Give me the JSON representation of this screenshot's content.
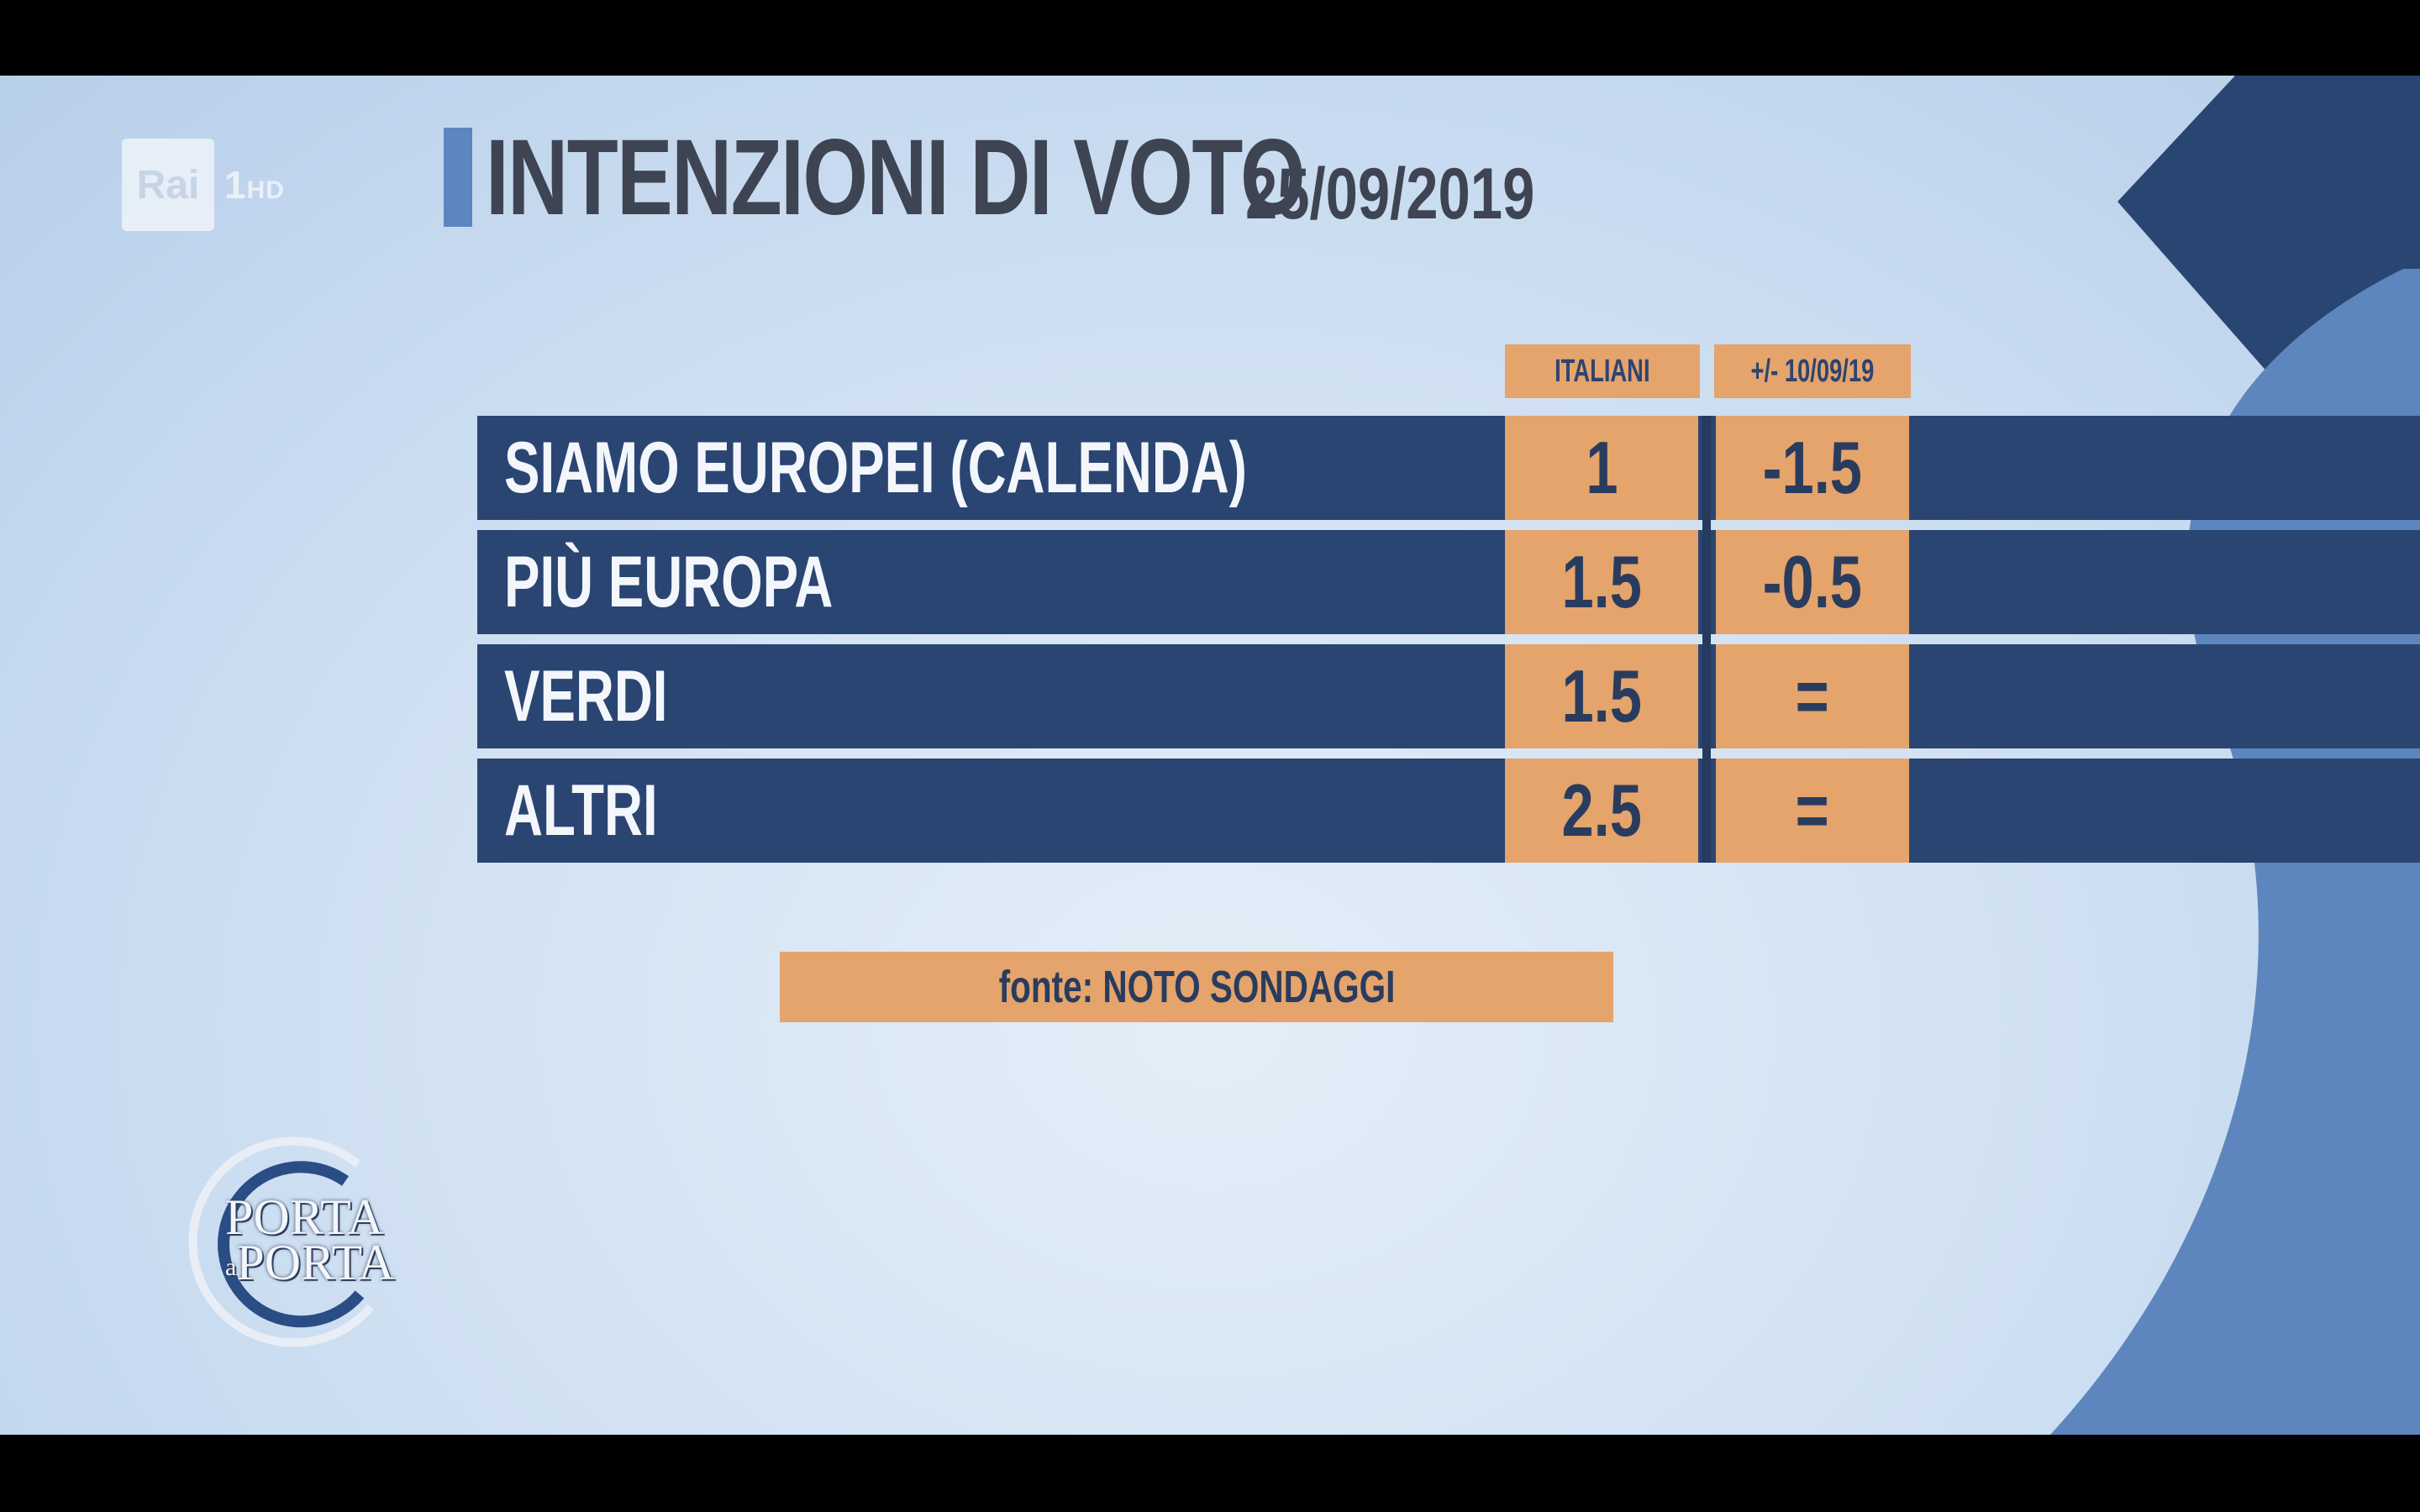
{
  "channel": {
    "brand": "Rai",
    "number": "1",
    "suffix": "HD"
  },
  "header": {
    "title": "INTENZIONI DI VOTO",
    "date": "25/09/2019"
  },
  "columns": [
    "ITALIANI",
    "+/- 10/09/19"
  ],
  "rows": [
    {
      "party": "SIAMO EUROPEI (CALENDA)",
      "italiani": "1",
      "change": "-1.5"
    },
    {
      "party": "PIÙ EUROPA",
      "italiani": "1.5",
      "change": "-0.5"
    },
    {
      "party": "VERDI",
      "italiani": "1.5",
      "change": "="
    },
    {
      "party": "ALTRI",
      "italiani": "2.5",
      "change": "="
    }
  ],
  "source": "fonte: NOTO SONDAGGI",
  "show_logo": {
    "line1": "PORTA",
    "connector": "a",
    "line2": "PORTA"
  },
  "colors": {
    "accent_orange": "#e4a46c",
    "row_navy": "#2a4572",
    "title_bar_blue": "#5b86bf",
    "title_text": "#3e4452"
  },
  "chart_data": {
    "type": "table",
    "title": "INTENZIONI DI VOTO",
    "date": "25/09/2019",
    "columns": [
      "ITALIANI",
      "+/- 10/09/19"
    ],
    "rows": [
      {
        "label": "SIAMO EUROPEI (CALENDA)",
        "values": [
          "1",
          "-1.5"
        ]
      },
      {
        "label": "PIÙ EUROPA",
        "values": [
          "1.5",
          "-0.5"
        ]
      },
      {
        "label": "VERDI",
        "values": [
          "1.5",
          "="
        ]
      },
      {
        "label": "ALTRI",
        "values": [
          "2.5",
          "="
        ]
      }
    ],
    "source": "fonte: NOTO SONDAGGI"
  }
}
